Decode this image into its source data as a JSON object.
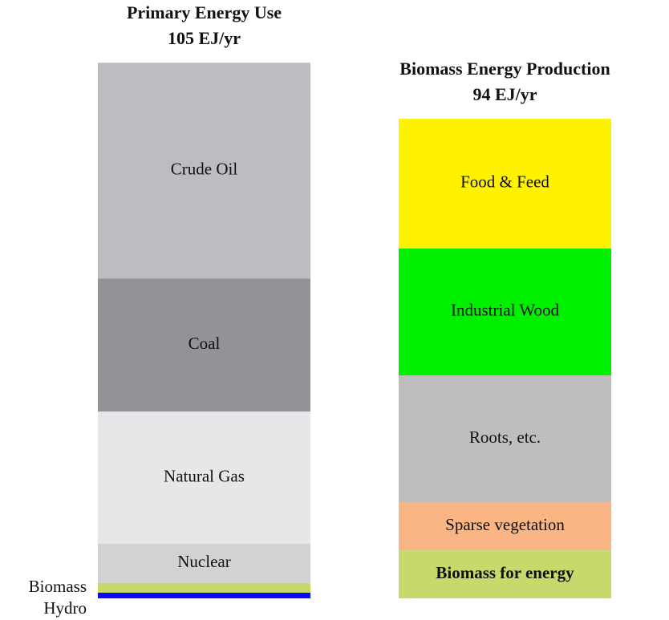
{
  "chart_data": [
    {
      "type": "bar",
      "stacked": true,
      "title": "Primary Energy Use",
      "subtitle": "105 EJ/yr",
      "series": [
        {
          "name": "Crude Oil",
          "color": "#bcbdc1",
          "values": [
            42.3
          ]
        },
        {
          "name": "Coal",
          "color": "#929396",
          "values": [
            26.1
          ]
        },
        {
          "name": "Natural Gas",
          "color": "#e6e7e9",
          "values": [
            25.9
          ]
        },
        {
          "name": "Nuclear",
          "color": "#d1d2d4",
          "values": [
            7.7
          ]
        },
        {
          "name": "Biomass",
          "color": "#c6d96b",
          "values": [
            1.9
          ]
        },
        {
          "name": "Hydro",
          "color": "#0a0aff",
          "values": [
            1.1
          ]
        }
      ]
    },
    {
      "type": "bar",
      "stacked": true,
      "title": "Biomass Energy Production",
      "subtitle": "94 EJ/yr",
      "series": [
        {
          "name": "Food & Feed",
          "color": "#fff200",
          "values": [
            25.4
          ]
        },
        {
          "name": "Industrial Wood",
          "color": "#00f000",
          "values": [
            24.9
          ]
        },
        {
          "name": "Roots, etc.",
          "color": "#bebebe",
          "values": [
            24.9
          ]
        },
        {
          "name": "Sparse vegetation",
          "color": "#f9b584",
          "values": [
            9.4
          ]
        },
        {
          "name": "Biomass for energy",
          "color": "#c6d96b",
          "values": [
            9.4
          ],
          "bold": true
        }
      ]
    }
  ]
}
